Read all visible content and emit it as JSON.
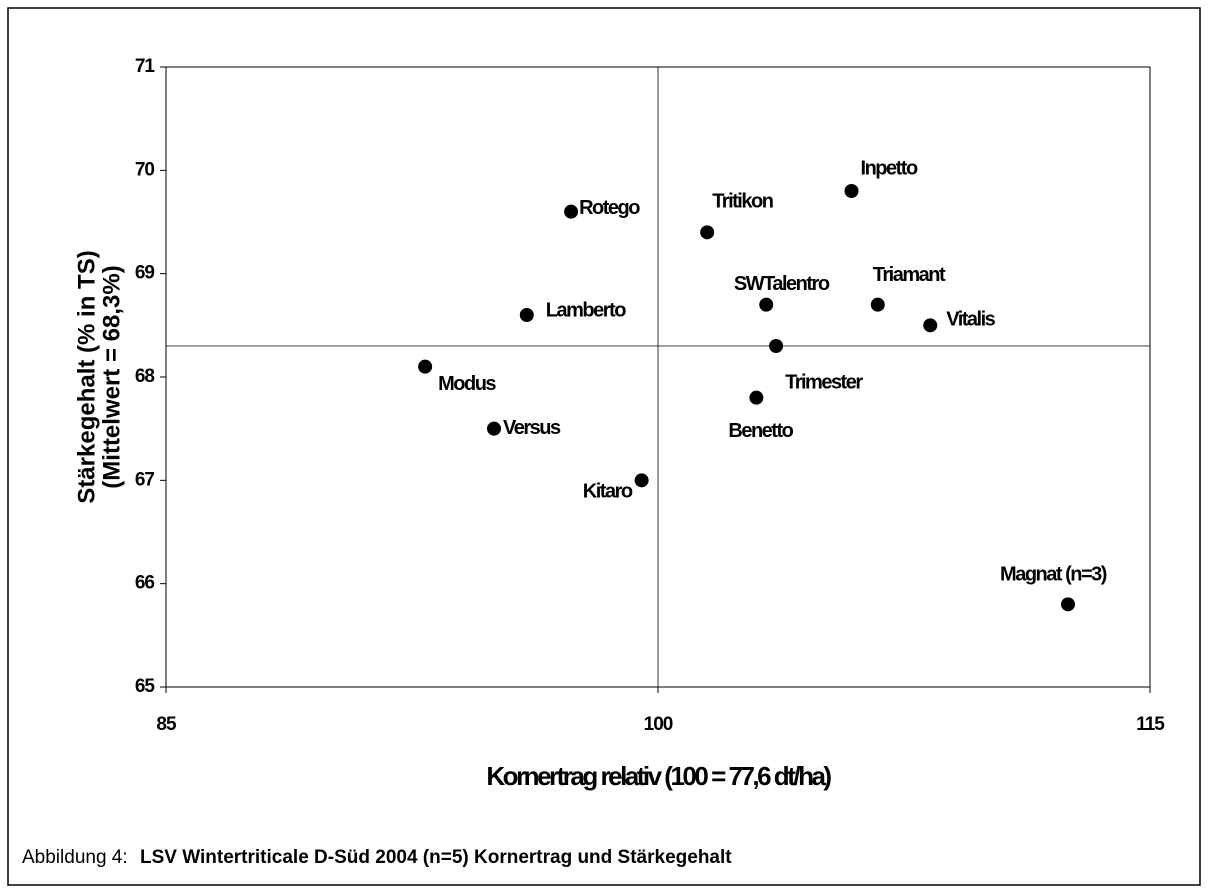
{
  "chart_data": {
    "type": "scatter",
    "x_label": "Kornertrag relativ (100 = 77,6 dt/ha)",
    "y_label": [
      "Stärkegehalt (% in TS)",
      "(Mittelwert = 68,3%)"
    ],
    "caption_prefix": "Abbildung 4:",
    "caption": "LSV Wintertriticale D-Süd 2004 (n=5) Kornertrag und Stärkegehalt",
    "labels": [
      "Rotego",
      "Lamberto",
      "Modus",
      "Versus",
      "Kitaro",
      "Tritikon",
      "Inpetto",
      "SWTalentro",
      "Triamant",
      "Vitalis",
      "Trimester",
      "Benetto",
      "Magnat (n=3)"
    ],
    "x": [
      97.35,
      96.0,
      92.9,
      95.0,
      99.5,
      101.5,
      105.9,
      103.3,
      106.7,
      108.3,
      103.6,
      103.0,
      112.5
    ],
    "y": [
      69.6,
      68.6,
      68.1,
      67.5,
      67.0,
      69.4,
      69.8,
      68.7,
      68.7,
      68.5,
      68.3,
      67.8,
      65.8
    ],
    "color": "#000000",
    "xlim": [
      85,
      115
    ],
    "xticks": [
      85,
      100,
      115
    ],
    "ylim": [
      65,
      71
    ],
    "yticks": [
      65,
      66,
      67,
      68,
      69,
      70,
      71
    ],
    "mean_lines": {
      "x": 100,
      "y": 68.3
    }
  }
}
